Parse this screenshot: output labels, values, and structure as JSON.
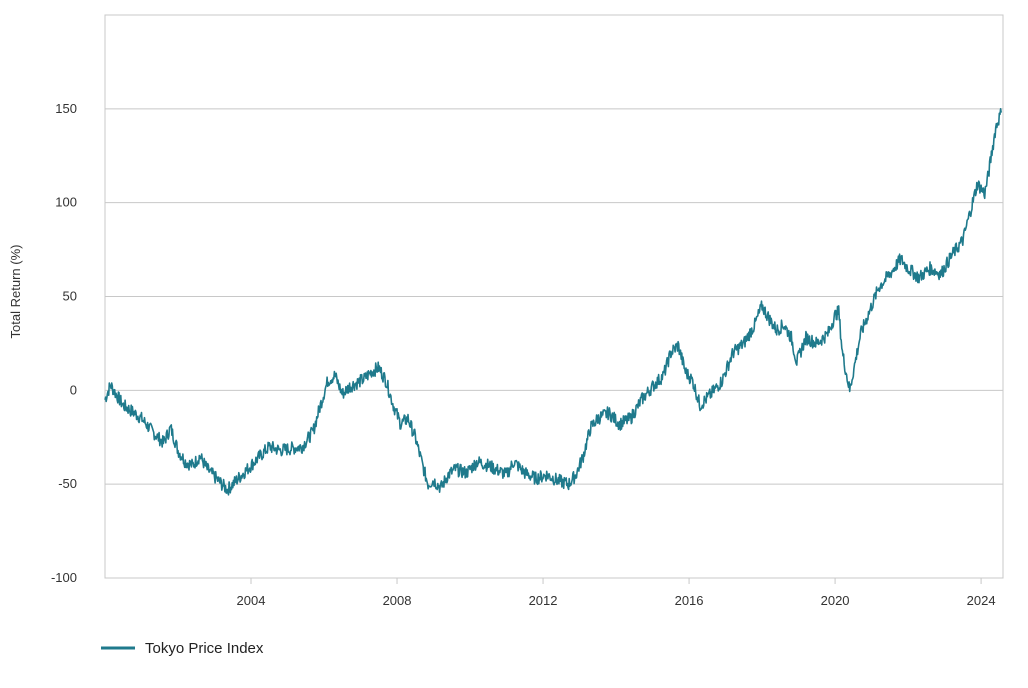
{
  "chart_data": {
    "type": "line",
    "title": "",
    "xlabel": "",
    "ylabel": "Total Return (%)",
    "xlim": [
      2000.0,
      2024.6
    ],
    "ylim": [
      -100,
      200
    ],
    "x_ticks": [
      2004,
      2008,
      2012,
      2016,
      2020,
      2024
    ],
    "x_tick_labels": [
      "2004",
      "2008",
      "2012",
      "2016",
      "2020",
      "2024"
    ],
    "y_ticks": [
      -100,
      -50,
      0,
      50,
      100,
      150
    ],
    "y_tick_labels": [
      "-100",
      "-50",
      "0",
      "50",
      "100",
      "150"
    ],
    "grid": "horizontal",
    "legend_position": "bottom-left",
    "series": [
      {
        "name": "Tokyo Price Index",
        "color": "#1f7a8c",
        "x": [
          2000.0,
          2000.15,
          2000.3,
          2000.5,
          2000.8,
          2001.0,
          2001.3,
          2001.6,
          2001.8,
          2002.0,
          2002.2,
          2002.4,
          2002.6,
          2002.8,
          2003.0,
          2003.2,
          2003.35,
          2003.6,
          2003.9,
          2004.2,
          2004.5,
          2004.8,
          2005.1,
          2005.4,
          2005.7,
          2005.9,
          2006.1,
          2006.3,
          2006.5,
          2006.7,
          2006.9,
          2007.1,
          2007.3,
          2007.5,
          2007.7,
          2007.9,
          2008.1,
          2008.3,
          2008.5,
          2008.7,
          2008.85,
          2009.0,
          2009.2,
          2009.4,
          2009.6,
          2009.9,
          2010.2,
          2010.5,
          2010.8,
          2011.0,
          2011.2,
          2011.5,
          2011.8,
          2012.1,
          2012.4,
          2012.7,
          2012.9,
          2013.1,
          2013.3,
          2013.5,
          2013.8,
          2014.1,
          2014.4,
          2014.7,
          2015.0,
          2015.3,
          2015.5,
          2015.7,
          2015.9,
          2016.1,
          2016.3,
          2016.6,
          2016.9,
          2017.2,
          2017.5,
          2017.8,
          2018.0,
          2018.2,
          2018.4,
          2018.6,
          2018.8,
          2018.95,
          2019.2,
          2019.5,
          2019.8,
          2020.0,
          2020.1,
          2020.2,
          2020.4,
          2020.7,
          2021.0,
          2021.2,
          2021.5,
          2021.8,
          2022.0,
          2022.3,
          2022.6,
          2022.9,
          2023.2,
          2023.5,
          2023.7,
          2023.9,
          2024.1,
          2024.2,
          2024.4,
          2024.55
        ],
        "y": [
          -5,
          3,
          -2,
          -8,
          -12,
          -15,
          -22,
          -28,
          -20,
          -32,
          -38,
          -40,
          -35,
          -42,
          -46,
          -50,
          -53,
          -48,
          -42,
          -36,
          -30,
          -32,
          -31,
          -30,
          -22,
          -8,
          5,
          8,
          -2,
          2,
          4,
          6,
          10,
          12,
          5,
          -8,
          -18,
          -15,
          -25,
          -40,
          -50,
          -48,
          -52,
          -45,
          -42,
          -44,
          -38,
          -40,
          -43,
          -45,
          -38,
          -44,
          -47,
          -45,
          -48,
          -50,
          -45,
          -35,
          -20,
          -15,
          -12,
          -18,
          -15,
          -5,
          2,
          8,
          20,
          24,
          10,
          5,
          -8,
          -2,
          5,
          20,
          25,
          35,
          45,
          38,
          32,
          35,
          28,
          15,
          28,
          25,
          30,
          40,
          42,
          20,
          0,
          30,
          45,
          55,
          62,
          70,
          65,
          60,
          65,
          62,
          72,
          80,
          95,
          110,
          105,
          115,
          140,
          148
        ]
      }
    ]
  }
}
